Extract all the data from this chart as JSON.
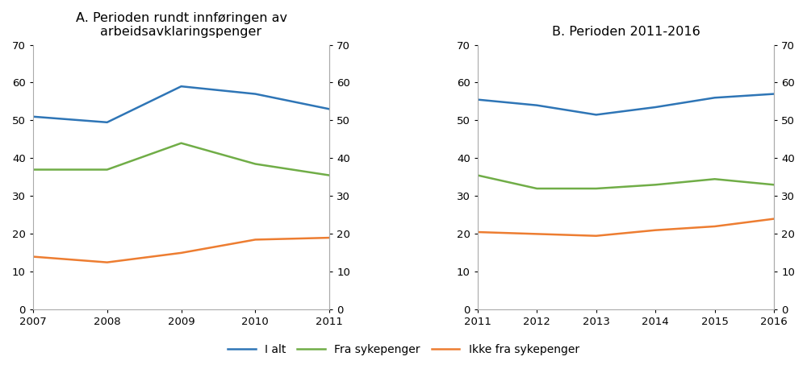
{
  "panel_A": {
    "title": "A. Perioden rundt innføringen av\narbeidsavklaringspenger",
    "years": [
      2007,
      2008,
      2009,
      2010,
      2011
    ],
    "i_alt": [
      51,
      49.5,
      59,
      57,
      53
    ],
    "fra_sykepenger": [
      37,
      37,
      44,
      38.5,
      35.5
    ],
    "ikke_fra": [
      14,
      12.5,
      15,
      18.5,
      19
    ]
  },
  "panel_B": {
    "title": "B. Perioden 2011-2016",
    "years": [
      2011,
      2012,
      2013,
      2014,
      2015,
      2016
    ],
    "i_alt": [
      55.5,
      54,
      51.5,
      53.5,
      56,
      57
    ],
    "fra_sykepenger": [
      35.5,
      32,
      32,
      33,
      34.5,
      33
    ],
    "ikke_fra": [
      20.5,
      20,
      19.5,
      21,
      22,
      24
    ]
  },
  "colors": {
    "i_alt": "#2e75b6",
    "fra_sykepenger": "#70ad47",
    "ikke_fra": "#ed7d31"
  },
  "legend_labels": [
    "I alt",
    "Fra sykepenger",
    "Ikke fra sykepenger"
  ],
  "ylim": [
    0,
    70
  ],
  "yticks": [
    0,
    10,
    20,
    30,
    40,
    50,
    60,
    70
  ],
  "linewidth": 1.8,
  "title_fontsize": 11.5,
  "tick_fontsize": 9.5,
  "legend_fontsize": 10,
  "spine_color": "#aaaaaa",
  "background_color": "#ffffff"
}
